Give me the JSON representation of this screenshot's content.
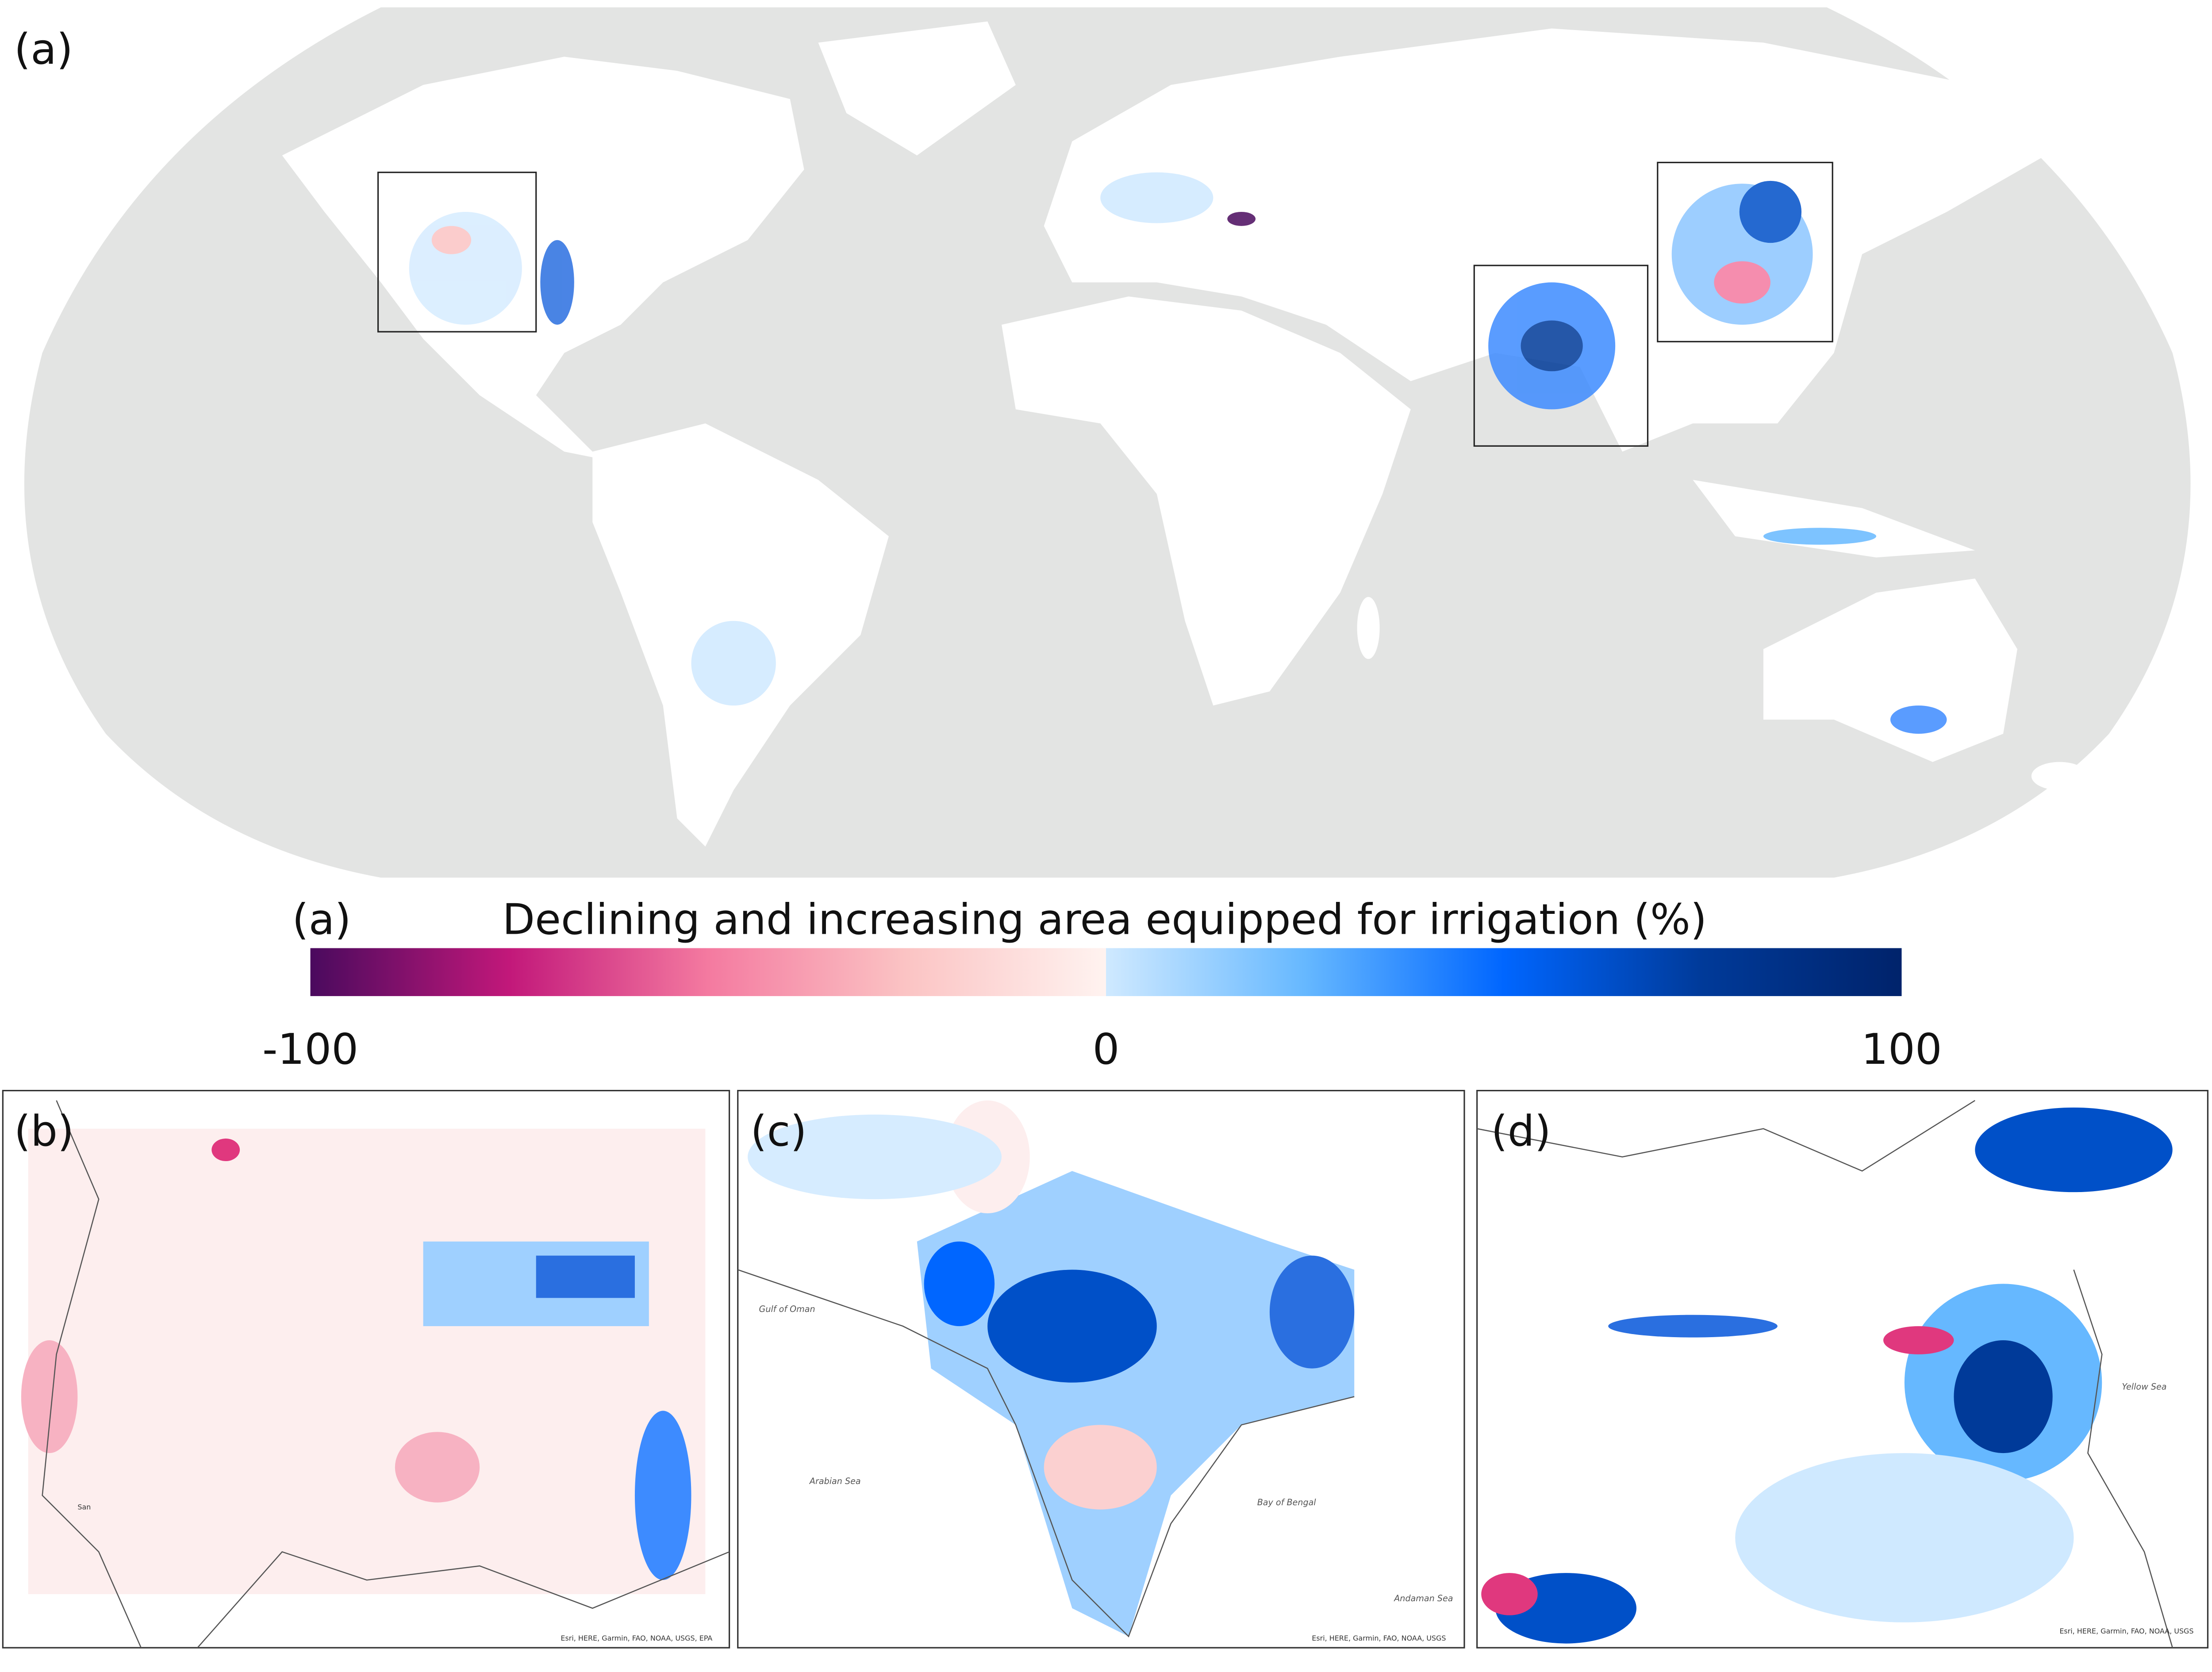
{
  "map_label": "(a)",
  "colorbar": {
    "panel_label": "(a)",
    "title": "Declining and increasing area equipped for irrigation (%)",
    "lim": [
      -100,
      100
    ],
    "ticks": [
      -100,
      0,
      100
    ],
    "negative_colors": [
      "#4a0a5e",
      "#c2187a",
      "#f47aa0",
      "#fbc4c4",
      "#fff3f0"
    ],
    "positive_colors": [
      "#cfe9ff",
      "#66b8ff",
      "#0066ff",
      "#003a99",
      "#00236b"
    ]
  },
  "insets": [
    {
      "label": "(b)",
      "place_labels": [
        "San"
      ],
      "attribution": "Esri, HERE, Garmin, FAO, NOAA, USGS, EPA"
    },
    {
      "label": "(c)",
      "place_labels": [
        "Gulf of Oman",
        "Arabian Sea",
        "Bay of Bengal",
        "Andaman Sea"
      ],
      "attribution": "Esri, HERE, Garmin, FAO, NOAA, USGS"
    },
    {
      "label": "(d)",
      "place_labels": [
        "Yellow Sea"
      ],
      "attribution": "Esri, HERE, Garmin, FAO, NOAA, USGS"
    }
  ]
}
